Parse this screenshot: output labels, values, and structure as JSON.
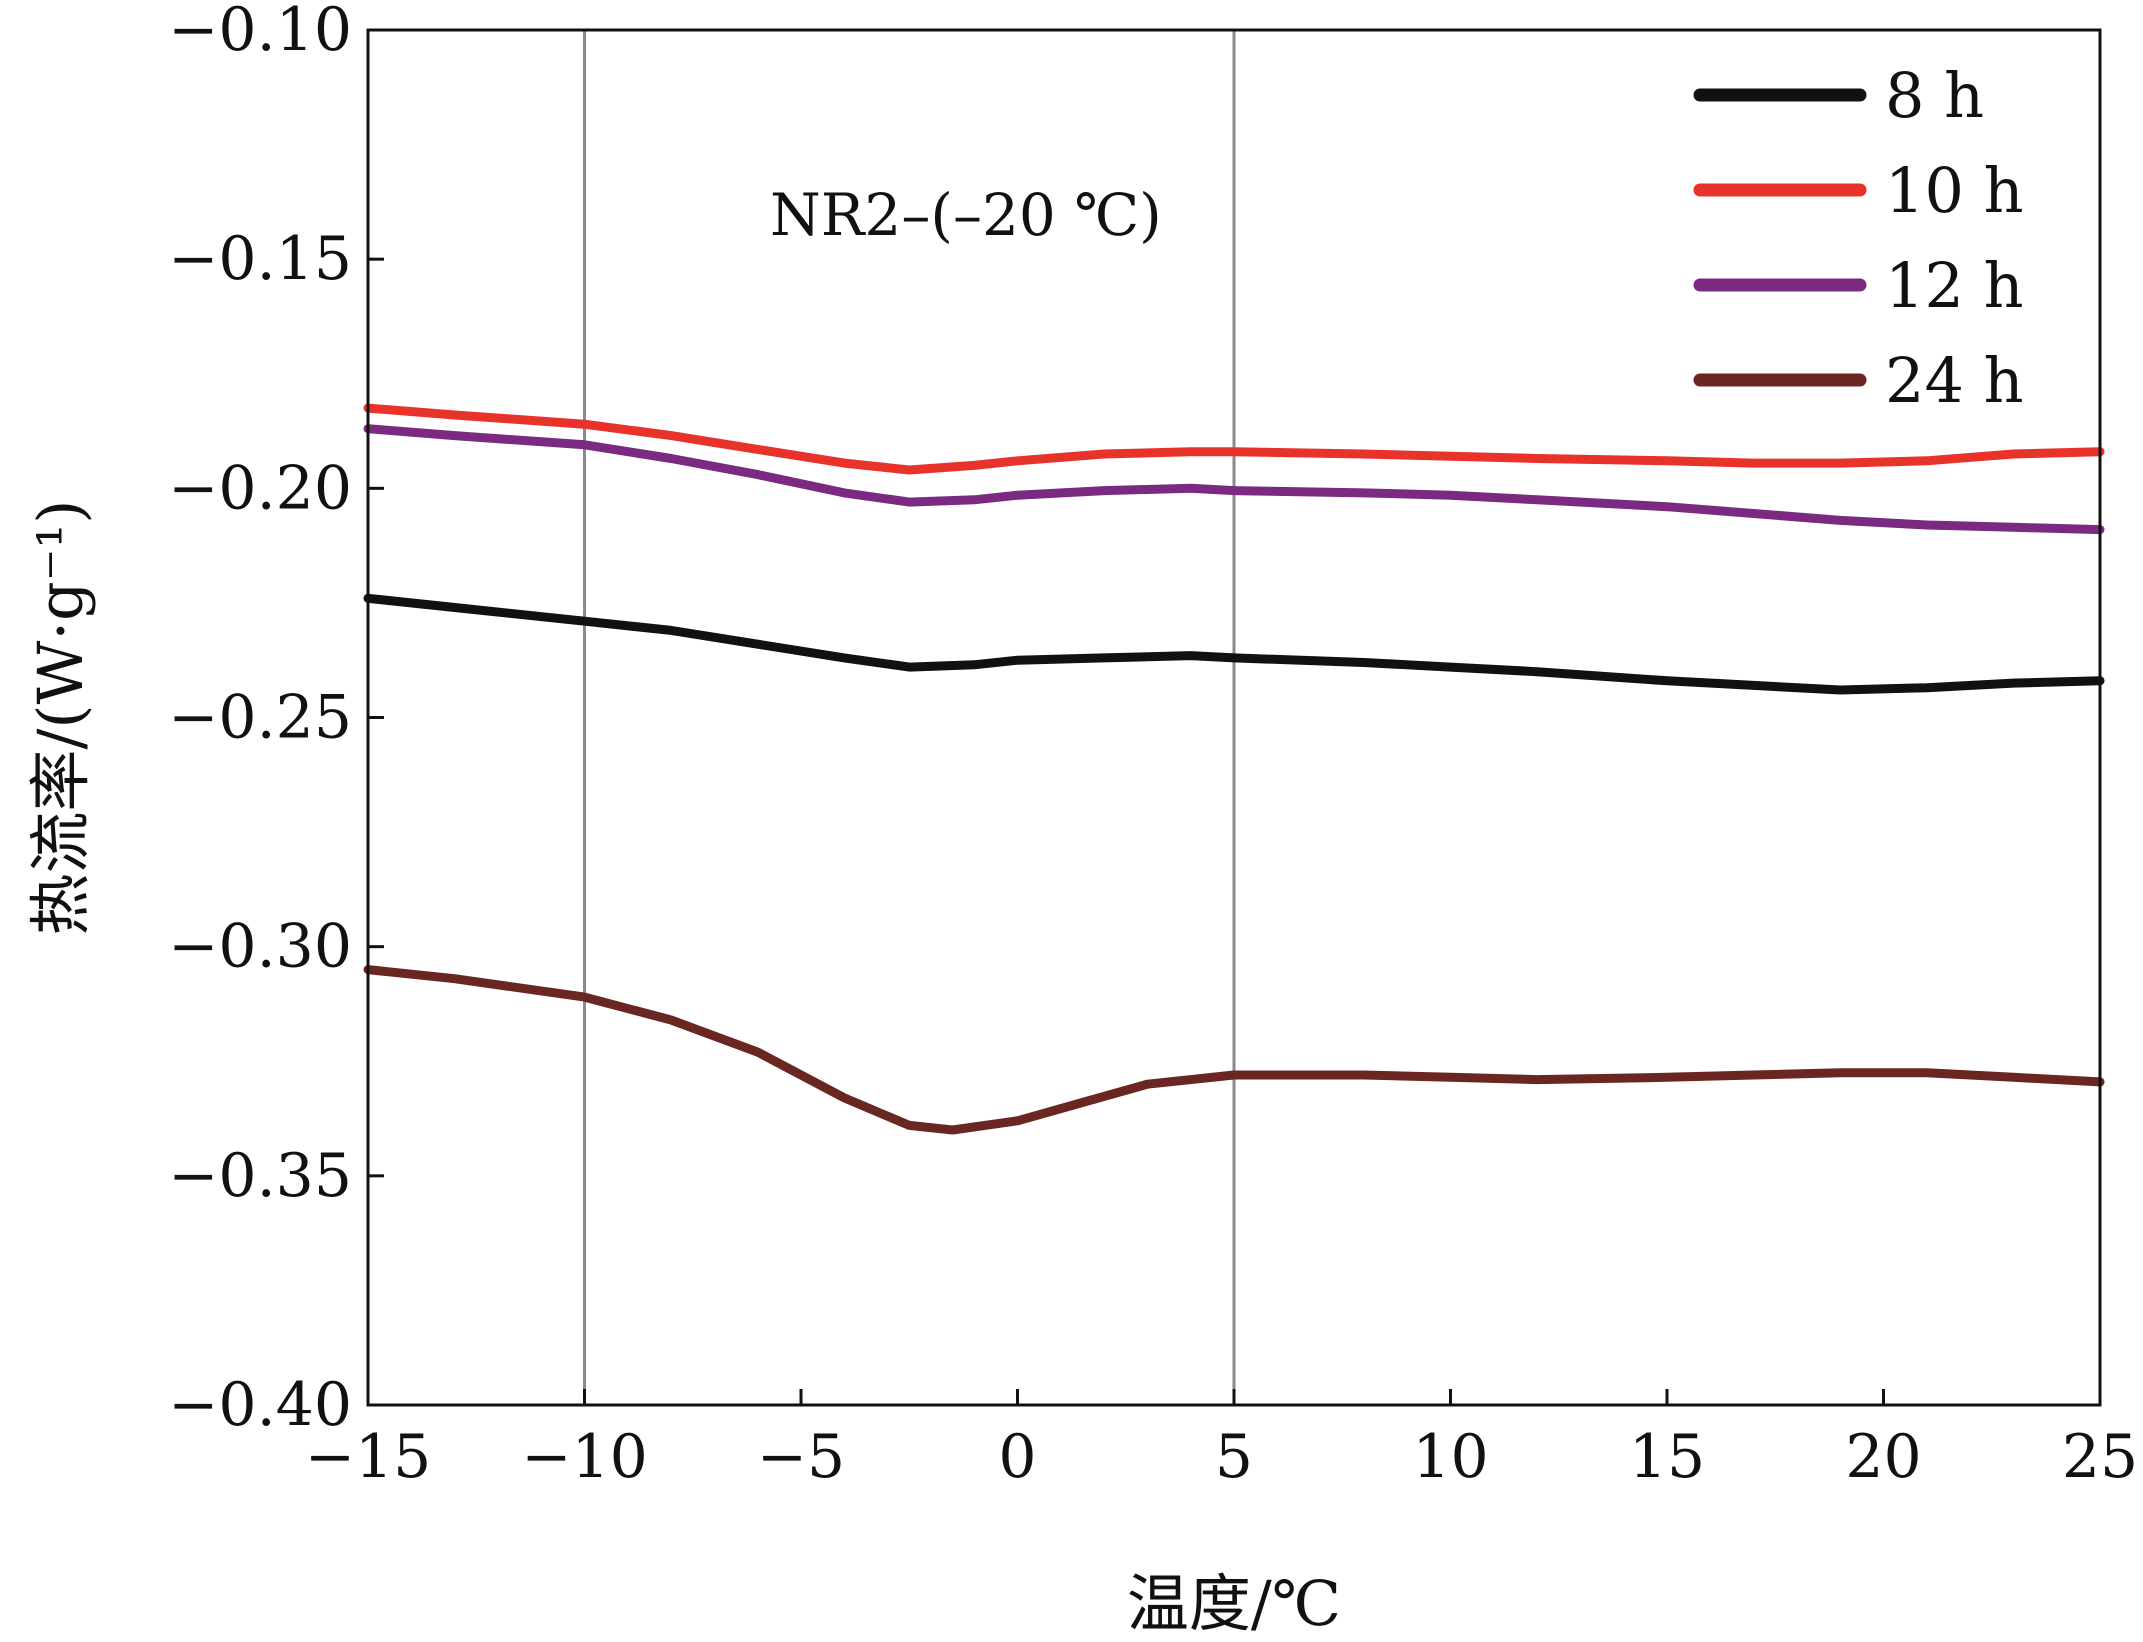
{
  "chart_data": {
    "type": "line",
    "title": "",
    "annotation": "NR2–(–20 ℃)",
    "xlabel": "温度/℃",
    "ylabel": "热流率/(W·g⁻¹)",
    "xlim": [
      -15,
      25
    ],
    "ylim": [
      -0.4,
      -0.1
    ],
    "x_ticks": [
      -15,
      -10,
      -5,
      0,
      5,
      10,
      15,
      20,
      25
    ],
    "x_tick_labels": [
      "−15",
      "−10",
      "−5",
      "0",
      "5",
      "10",
      "15",
      "20",
      "25"
    ],
    "y_ticks": [
      -0.1,
      -0.15,
      -0.2,
      -0.25,
      -0.3,
      -0.35,
      -0.4
    ],
    "y_tick_labels": [
      "−0.10",
      "−0.15",
      "−0.20",
      "−0.25",
      "−0.30",
      "−0.35",
      "−0.40"
    ],
    "reference_lines_x": [
      -10,
      5
    ],
    "legend_position": "top-right",
    "grid": false,
    "series": [
      {
        "name": "8 h",
        "color": "#111111",
        "x": [
          -15,
          -13,
          -10,
          -8,
          -6,
          -4,
          -2.5,
          -1,
          0,
          2,
          4,
          5,
          8,
          10,
          12,
          15,
          17,
          19,
          21,
          23,
          25
        ],
        "y": [
          -0.224,
          -0.226,
          -0.229,
          -0.231,
          -0.234,
          -0.237,
          -0.239,
          -0.2385,
          -0.2375,
          -0.237,
          -0.2365,
          -0.237,
          -0.238,
          -0.239,
          -0.24,
          -0.242,
          -0.243,
          -0.244,
          -0.2435,
          -0.2425,
          -0.242
        ]
      },
      {
        "name": "10 h",
        "color": "#e8332a",
        "x": [
          -15,
          -13,
          -10,
          -8,
          -6,
          -4,
          -2.5,
          -1,
          0,
          2,
          4,
          5,
          8,
          10,
          12,
          15,
          17,
          19,
          21,
          23,
          25
        ],
        "y": [
          -0.1825,
          -0.184,
          -0.186,
          -0.1885,
          -0.1915,
          -0.1945,
          -0.196,
          -0.195,
          -0.194,
          -0.1925,
          -0.192,
          -0.192,
          -0.1925,
          -0.193,
          -0.1935,
          -0.194,
          -0.1945,
          -0.1945,
          -0.194,
          -0.1925,
          -0.192
        ]
      },
      {
        "name": "12 h",
        "color": "#7a2a80",
        "x": [
          -15,
          -13,
          -10,
          -8,
          -6,
          -4,
          -2.5,
          -1,
          0,
          2,
          4,
          5,
          8,
          10,
          12,
          15,
          17,
          19,
          21,
          23,
          25
        ],
        "y": [
          -0.187,
          -0.1885,
          -0.1905,
          -0.1935,
          -0.197,
          -0.201,
          -0.203,
          -0.2025,
          -0.2015,
          -0.2005,
          -0.2,
          -0.2005,
          -0.201,
          -0.2015,
          -0.2025,
          -0.204,
          -0.2055,
          -0.207,
          -0.208,
          -0.2085,
          -0.209
        ]
      },
      {
        "name": "24 h",
        "color": "#6a2620",
        "x": [
          -15,
          -13,
          -10,
          -8,
          -6,
          -4,
          -2.5,
          -1.5,
          0,
          1.5,
          3,
          5,
          8,
          10,
          12,
          15,
          17,
          19,
          21,
          23,
          25
        ],
        "y": [
          -0.305,
          -0.307,
          -0.311,
          -0.316,
          -0.323,
          -0.333,
          -0.339,
          -0.34,
          -0.338,
          -0.334,
          -0.33,
          -0.328,
          -0.328,
          -0.3285,
          -0.329,
          -0.3285,
          -0.328,
          -0.3275,
          -0.3275,
          -0.3285,
          -0.3295
        ]
      }
    ]
  }
}
